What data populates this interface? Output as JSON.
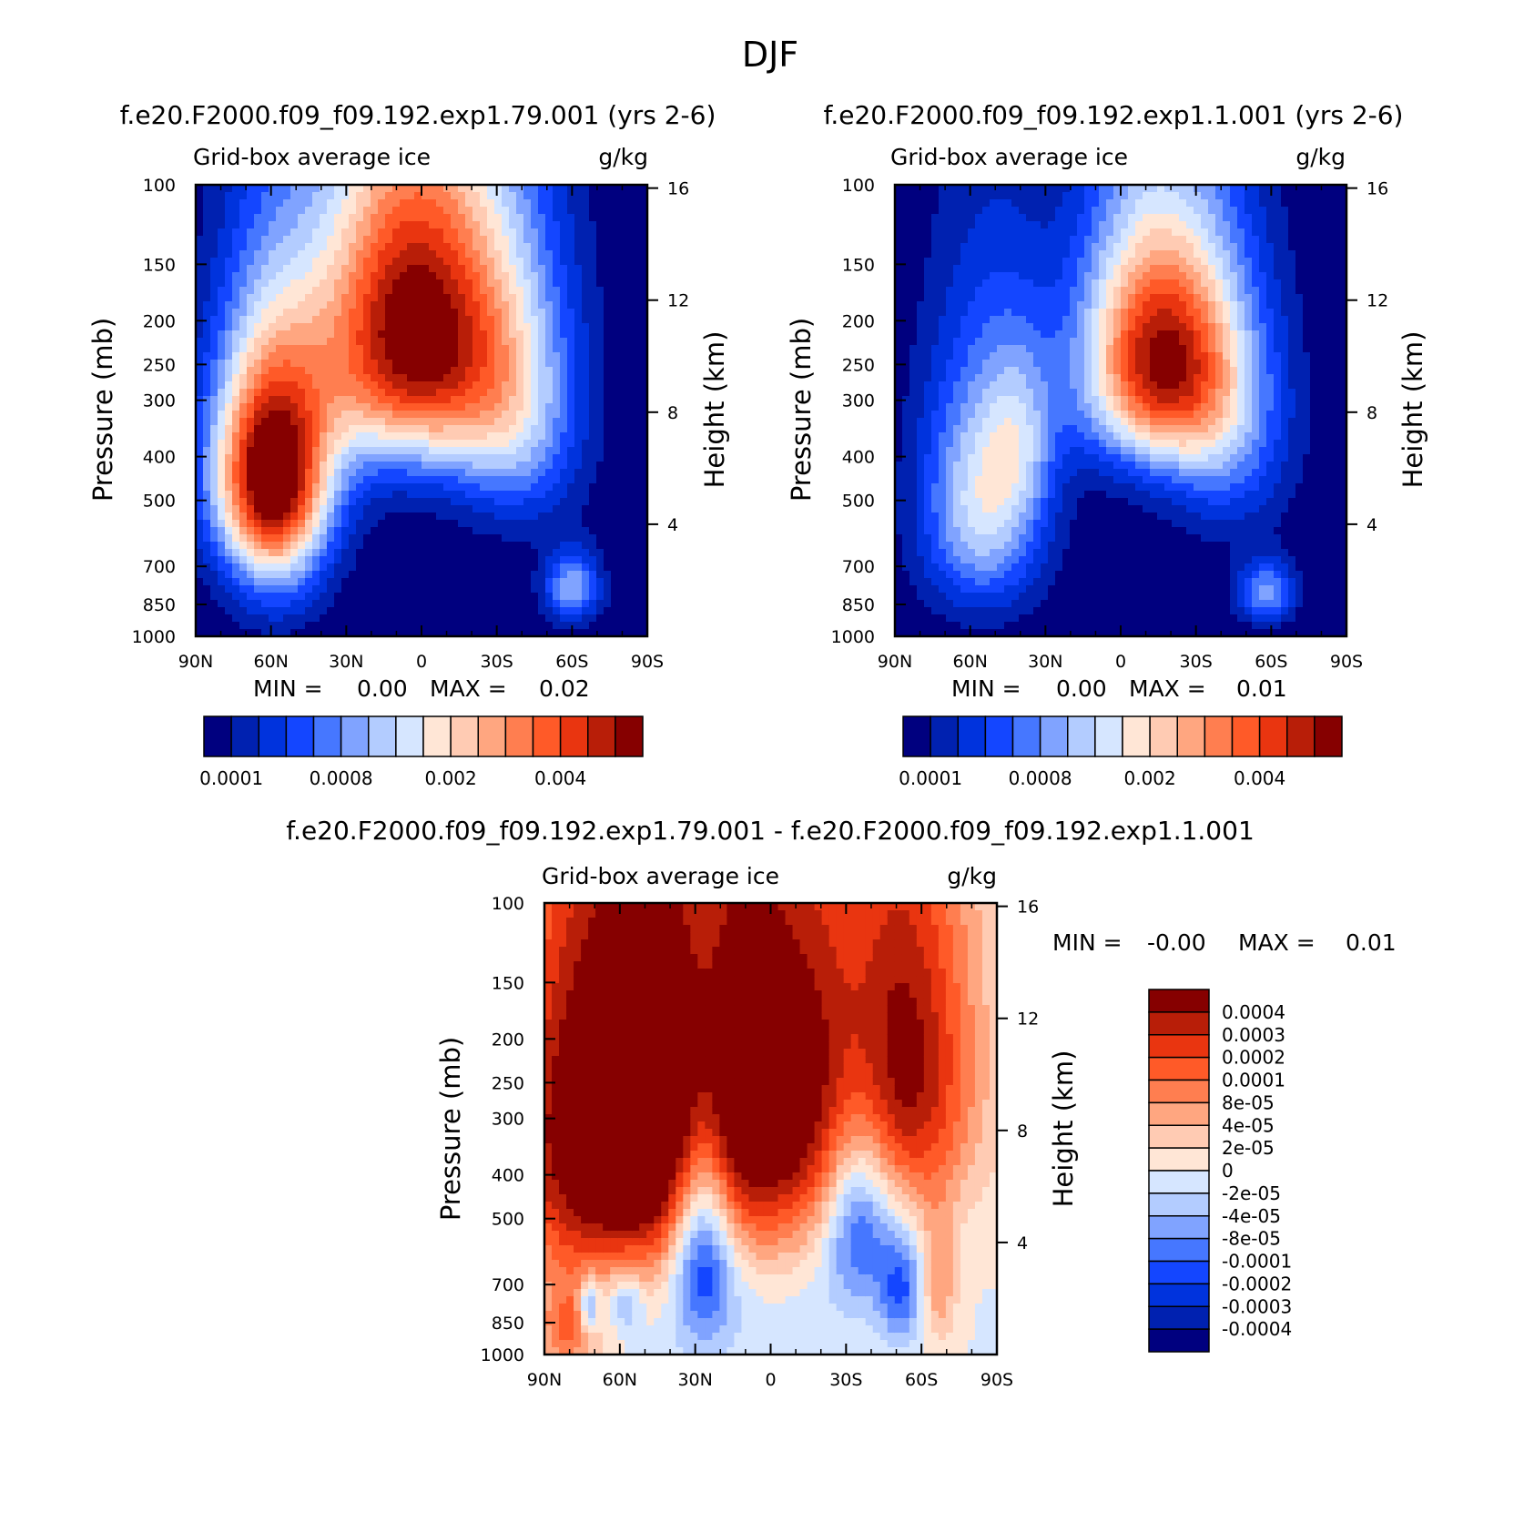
{
  "title": "DJF",
  "panels": [
    {
      "id": "panel1",
      "title": "f.e20.F2000.f09_f09.192.exp1.79.001 (yrs 2-6)",
      "left_label": "Grid-box average ice",
      "right_label": "g/kg",
      "ylabel": "Pressure (mb)",
      "y2label": "Height (km)",
      "stats": {
        "min_label": "MIN =",
        "min": "0.00",
        "max_label": "MAX =",
        "max": "0.02"
      }
    },
    {
      "id": "panel2",
      "title": "f.e20.F2000.f09_f09.192.exp1.1.001 (yrs 2-6)",
      "left_label": "Grid-box average ice",
      "right_label": "g/kg",
      "ylabel": "Pressure (mb)",
      "y2label": "Height (km)",
      "stats": {
        "min_label": "MIN =",
        "min": "0.00",
        "max_label": "MAX =",
        "max": "0.01"
      }
    },
    {
      "id": "panel3",
      "title": "f.e20.F2000.f09_f09.192.exp1.79.001 - f.e20.F2000.f09_f09.192.exp1.1.001",
      "left_label": "Grid-box average ice",
      "right_label": "g/kg",
      "ylabel": "Pressure (mb)",
      "y2label": "Height (km)",
      "stats": {
        "min_label": "MIN =",
        "min": "-0.00",
        "max_label": "MAX =",
        "max": "0.01"
      }
    }
  ],
  "colors": {
    "abs_scale": [
      "#00007f",
      "#0021b0",
      "#0033dd",
      "#1446ff",
      "#4677ff",
      "#80a3ff",
      "#b3ccff",
      "#d6e6ff",
      "#ffe6d6",
      "#ffcbb3",
      "#ffa680",
      "#ff7e50",
      "#ff5a28",
      "#e93510",
      "#b81e08",
      "#860000"
    ],
    "diff_scale": [
      "#00007f",
      "#0021b0",
      "#0033dd",
      "#1446ff",
      "#4677ff",
      "#80a3ff",
      "#b3ccff",
      "#d6e6ff",
      "#ffe6d6",
      "#ffcbb3",
      "#ffa680",
      "#ff7e50",
      "#ff5a28",
      "#e93510",
      "#b81e08",
      "#860000"
    ]
  },
  "chart_data": [
    {
      "type": "contour",
      "panel": "panel1",
      "variable": "Grid-box average ice",
      "units": "g/kg",
      "x_ticks": [
        "90N",
        "60N",
        "30N",
        "0",
        "30S",
        "60S",
        "90S"
      ],
      "x_values": [
        90,
        60,
        30,
        0,
        -30,
        -60,
        -90
      ],
      "xlim": [
        90,
        -90
      ],
      "y_ticks": [
        "100",
        "150",
        "200",
        "250",
        "300",
        "400",
        "500",
        "700",
        "850",
        "1000"
      ],
      "y_values": [
        100,
        150,
        200,
        250,
        300,
        400,
        500,
        700,
        850,
        1000
      ],
      "ylim": [
        1000,
        100
      ],
      "y2_ticks": [
        "16",
        "12",
        "8",
        "4"
      ],
      "y2_values": [
        16,
        12,
        8,
        4
      ],
      "min": 0.0,
      "max": 0.02,
      "colorbar_tick_labels": [
        "0.0001",
        "0.0008",
        "0.002",
        "0.004"
      ],
      "blobs": [
        {
          "lat": 60,
          "p": 420,
          "amp": 7.2,
          "slat": 17,
          "sp": 170
        },
        {
          "lat": 58,
          "p": 650,
          "amp": 2.0,
          "slat": 14,
          "sp": 200
        },
        {
          "lat": 3,
          "p": 210,
          "amp": 7.8,
          "slat": 28,
          "sp": 130
        },
        {
          "lat": -38,
          "p": 330,
          "amp": 2.5,
          "slat": 18,
          "sp": 150
        },
        {
          "lat": -60,
          "p": 780,
          "amp": 2.8,
          "slat": 8,
          "sp": 100
        }
      ]
    },
    {
      "type": "contour",
      "panel": "panel2",
      "variable": "Grid-box average ice",
      "units": "g/kg",
      "x_ticks": [
        "90N",
        "60N",
        "30N",
        "0",
        "30S",
        "60S",
        "90S"
      ],
      "x_values": [
        90,
        60,
        30,
        0,
        -30,
        -60,
        -90
      ],
      "xlim": [
        90,
        -90
      ],
      "y_ticks": [
        "100",
        "150",
        "200",
        "250",
        "300",
        "400",
        "500",
        "700",
        "850",
        "1000"
      ],
      "y_values": [
        100,
        150,
        200,
        250,
        300,
        400,
        500,
        700,
        850,
        1000
      ],
      "ylim": [
        1000,
        100
      ],
      "y2_ticks": [
        "16",
        "12",
        "8",
        "4"
      ],
      "y2_values": [
        16,
        12,
        8,
        4
      ],
      "min": 0.0,
      "max": 0.01,
      "colorbar_tick_labels": [
        "0.0001",
        "0.0008",
        "0.002",
        "0.004"
      ],
      "blobs": [
        {
          "lat": 55,
          "p": 500,
          "amp": 3.6,
          "slat": 17,
          "sp": 230
        },
        {
          "lat": 40,
          "p": 360,
          "amp": 1.6,
          "slat": 10,
          "sp": 120
        },
        {
          "lat": -15,
          "p": 240,
          "amp": 7.0,
          "slat": 22,
          "sp": 110
        },
        {
          "lat": -42,
          "p": 360,
          "amp": 2.0,
          "slat": 18,
          "sp": 150
        },
        {
          "lat": -58,
          "p": 800,
          "amp": 2.6,
          "slat": 8,
          "sp": 90
        }
      ]
    },
    {
      "type": "contour",
      "panel": "panel3",
      "variable": "Grid-box average ice",
      "units": "g/kg",
      "x_ticks": [
        "90N",
        "60N",
        "30N",
        "0",
        "30S",
        "60S",
        "90S"
      ],
      "x_values": [
        90,
        60,
        30,
        0,
        -30,
        -60,
        -90
      ],
      "xlim": [
        90,
        -90
      ],
      "y_ticks": [
        "100",
        "150",
        "200",
        "250",
        "300",
        "400",
        "500",
        "700",
        "850",
        "1000"
      ],
      "y_values": [
        100,
        150,
        200,
        250,
        300,
        400,
        500,
        700,
        850,
        1000
      ],
      "ylim": [
        1000,
        100
      ],
      "y2_ticks": [
        "16",
        "12",
        "8",
        "4"
      ],
      "y2_values": [
        16,
        12,
        8,
        4
      ],
      "min": -0.0,
      "max": 0.01,
      "colorbar_levels": [
        "0.0004",
        "0.0003",
        "0.0002",
        "0.0001",
        "8e-05",
        "4e-05",
        "2e-05",
        "0",
        "-2e-05",
        "-4e-05",
        "-8e-05",
        "-0.0001",
        "-0.0002",
        "-0.0003",
        "-0.0004"
      ],
      "blobs": [
        {
          "lat": 65,
          "p": 320,
          "amp": 9.0,
          "slat": 30,
          "sp": 240
        },
        {
          "lat": 5,
          "p": 260,
          "amp": 9.0,
          "slat": 34,
          "sp": 200
        },
        {
          "lat": -55,
          "p": 220,
          "amp": 6.0,
          "slat": 20,
          "sp": 160
        },
        {
          "lat": 27,
          "p": 520,
          "amp": -7.5,
          "slat": 9,
          "sp": 240
        },
        {
          "lat": -35,
          "p": 470,
          "amp": -6.0,
          "slat": 10,
          "sp": 180
        },
        {
          "lat": -52,
          "p": 720,
          "amp": -4.0,
          "slat": 6,
          "sp": 140
        },
        {
          "lat": 72,
          "p": 780,
          "amp": -5.0,
          "slat": 3,
          "sp": 80
        },
        {
          "lat": 58,
          "p": 760,
          "amp": -3.0,
          "slat": 5,
          "sp": 90
        },
        {
          "lat": 5,
          "p": 830,
          "amp": -0.5,
          "slat": 40,
          "sp": 200
        },
        {
          "lat": -67,
          "p": 700,
          "amp": 3.0,
          "slat": 5,
          "sp": 160
        },
        {
          "lat": 80,
          "p": 880,
          "amp": 4.0,
          "slat": 9,
          "sp": 140
        }
      ]
    }
  ]
}
